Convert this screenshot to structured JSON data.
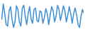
{
  "chart_data": {
    "type": "line",
    "color": "#3b8fd8",
    "tick_labels": false,
    "ylim": [
      0,
      100
    ],
    "values": [
      40,
      95,
      60,
      20,
      15,
      70,
      85,
      40,
      10,
      30,
      88,
      75,
      30,
      15,
      80,
      90,
      50,
      20,
      60,
      85,
      40,
      25,
      75,
      80,
      35,
      30,
      70,
      65,
      25,
      45,
      78,
      60,
      20,
      55,
      85,
      70,
      30,
      50,
      90,
      75,
      35,
      60,
      88,
      70,
      30,
      55,
      85,
      60,
      25,
      60,
      80,
      55,
      20,
      10,
      50,
      75,
      60
    ]
  }
}
